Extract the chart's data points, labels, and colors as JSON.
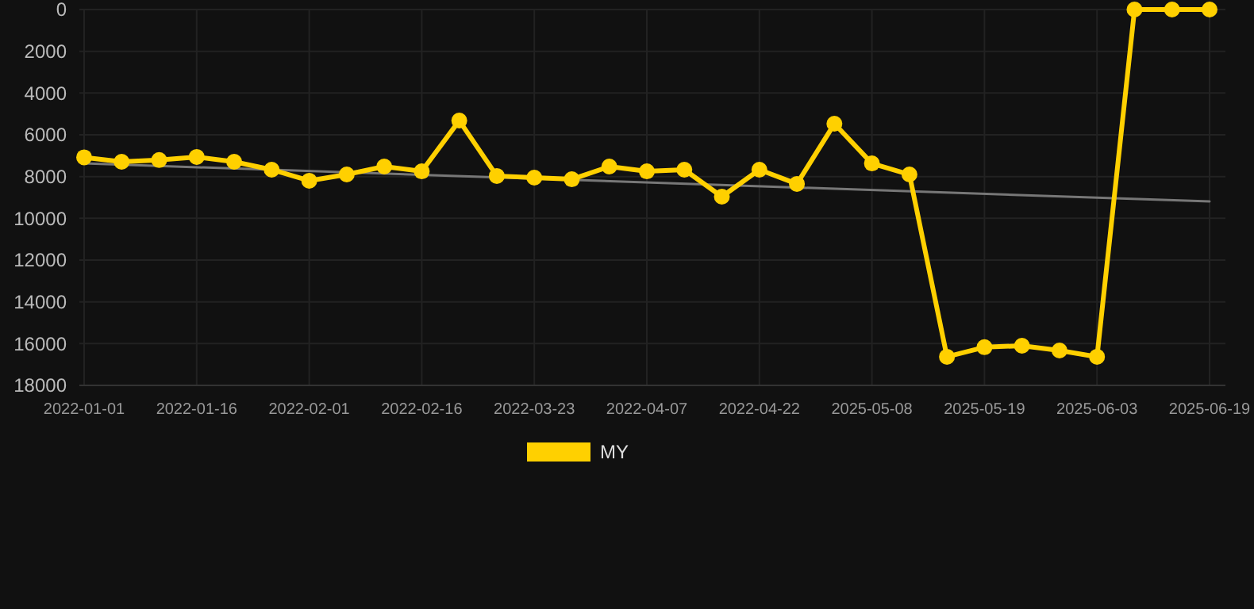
{
  "chart_data": {
    "type": "line",
    "categories": [
      "2022-01-01",
      null,
      null,
      "2022-01-16",
      null,
      null,
      "2022-02-01",
      null,
      null,
      "2022-02-16",
      null,
      null,
      "2022-03-23",
      null,
      null,
      "2022-04-07",
      null,
      null,
      "2022-04-22",
      null,
      null,
      "2025-05-08",
      null,
      null,
      "2025-05-19",
      null,
      null,
      "2025-06-03",
      null,
      null,
      "2025-06-19"
    ],
    "series": [
      {
        "name": "MY",
        "color": "#ffd000",
        "values": [
          7080,
          7290,
          7210,
          7060,
          7290,
          7670,
          8200,
          7900,
          7520,
          7750,
          5320,
          7970,
          8050,
          8130,
          7520,
          7750,
          7670,
          8960,
          7670,
          8350,
          5470,
          7370,
          7900,
          16630,
          16170,
          16100,
          16330,
          16630,
          0,
          0,
          0
        ]
      },
      {
        "type": "line",
        "color": "#777777",
        "values": [
          7370,
          null,
          null,
          null,
          null,
          null,
          null,
          null,
          null,
          null,
          null,
          null,
          null,
          null,
          null,
          null,
          null,
          null,
          null,
          null,
          null,
          null,
          null,
          null,
          null,
          null,
          null,
          null,
          null,
          null,
          9190
        ],
        "marker": "none"
      }
    ],
    "ylim": [
      18000,
      0
    ],
    "yticks": [
      0,
      2000,
      4000,
      6000,
      8000,
      10000,
      12000,
      14000,
      16000,
      18000
    ],
    "grid": true,
    "legend": "bottom",
    "marker": "circle"
  }
}
